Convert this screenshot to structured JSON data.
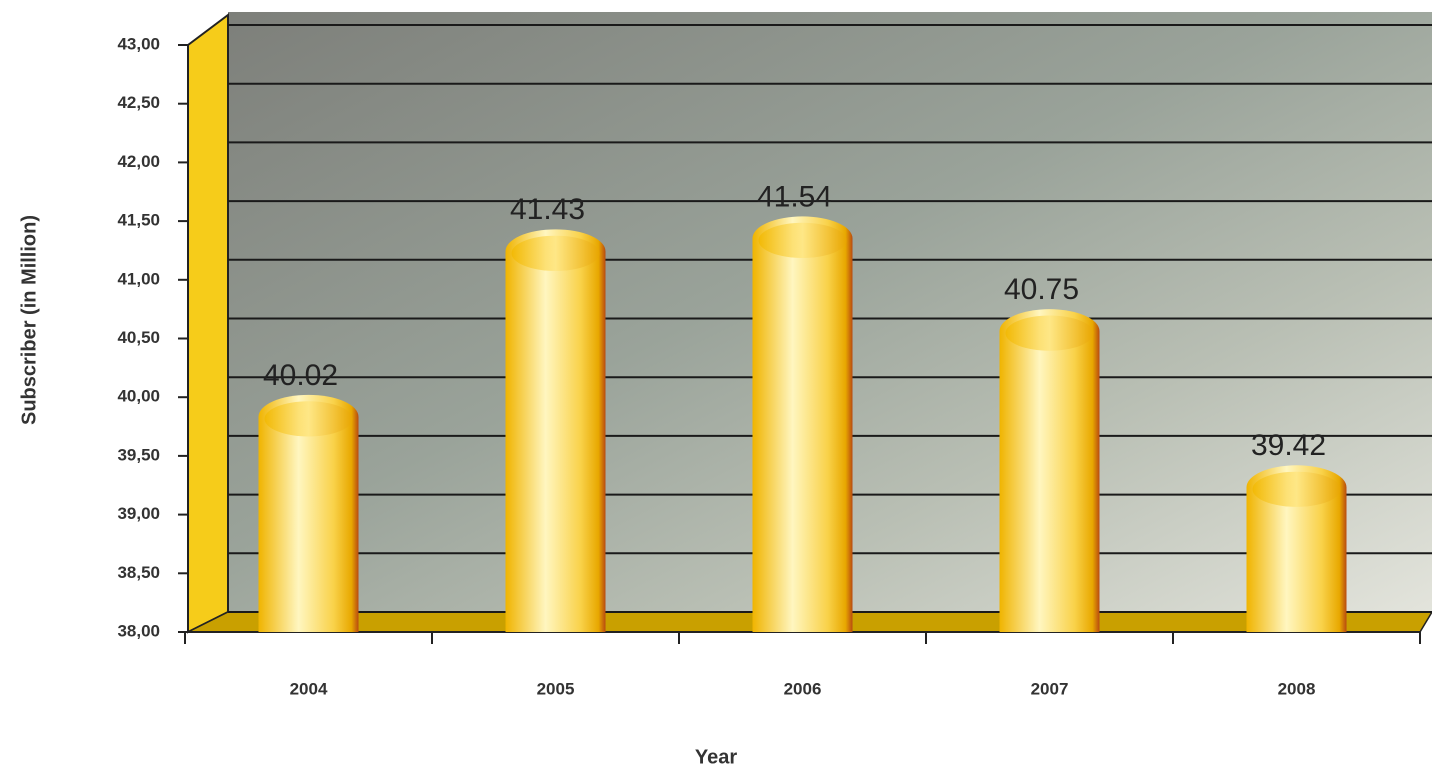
{
  "chart_data": {
    "type": "bar",
    "x_label": "Year",
    "y_label": "Subscriber (in Million)",
    "categories": [
      "2004",
      "2005",
      "2006",
      "2007",
      "2008"
    ],
    "values": [
      40.02,
      41.43,
      41.54,
      40.75,
      39.42
    ],
    "color": "#f5c518",
    "ylim": [
      38,
      43
    ],
    "yticks": [
      {
        "value": 38,
        "label": "38,00"
      },
      {
        "value": 38.5,
        "label": "38,50"
      },
      {
        "value": 39,
        "label": "39,00"
      },
      {
        "value": 39.5,
        "label": "39,50"
      },
      {
        "value": 40,
        "label": "40,00"
      },
      {
        "value": 40.5,
        "label": "40,50"
      },
      {
        "value": 41,
        "label": "41,00"
      },
      {
        "value": 41.5,
        "label": "41,50"
      },
      {
        "value": 42,
        "label": "42,00"
      },
      {
        "value": 42.5,
        "label": "42,50"
      },
      {
        "value": 43,
        "label": "43,00"
      }
    ],
    "grid": true
  }
}
